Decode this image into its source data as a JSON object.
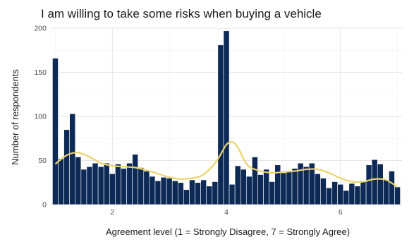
{
  "chart_data": {
    "type": "bar",
    "title": "I am willing to take some risks when buying a vehicle",
    "xlabel": "Agreement level (1 = Strongly Disagree, 7 = Strongly Agree)",
    "ylabel": "Number of respondents",
    "xlim": [
      0.92,
      7.08
    ],
    "ylim": [
      0,
      200
    ],
    "xticks": [
      2,
      4,
      6
    ],
    "yticks": [
      0,
      50,
      100,
      150,
      200
    ],
    "bin_width": 0.1,
    "grid": true,
    "x": [
      1.0,
      1.1,
      1.2,
      1.3,
      1.4,
      1.5,
      1.6,
      1.7,
      1.8,
      1.9,
      2.0,
      2.1,
      2.2,
      2.3,
      2.4,
      2.5,
      2.6,
      2.7,
      2.8,
      2.9,
      3.0,
      3.1,
      3.2,
      3.3,
      3.4,
      3.5,
      3.6,
      3.7,
      3.8,
      3.9,
      4.0,
      4.1,
      4.2,
      4.3,
      4.4,
      4.5,
      4.6,
      4.7,
      4.8,
      4.9,
      5.0,
      5.1,
      5.2,
      5.3,
      5.4,
      5.5,
      5.6,
      5.7,
      5.8,
      5.9,
      6.0,
      6.1,
      6.2,
      6.3,
      6.4,
      6.5,
      6.6,
      6.7,
      6.8,
      6.9,
      7.0
    ],
    "values": [
      166,
      52,
      85,
      103,
      54,
      40,
      43,
      47,
      43,
      47,
      35,
      46,
      41,
      47,
      57,
      42,
      38,
      32,
      27,
      31,
      30,
      27,
      25,
      17,
      28,
      25,
      28,
      21,
      26,
      181,
      197,
      23,
      44,
      40,
      32,
      54,
      34,
      40,
      26,
      45,
      36,
      37,
      41,
      47,
      43,
      47,
      35,
      30,
      19,
      26,
      23,
      16,
      24,
      21,
      27,
      45,
      51,
      46,
      28,
      38,
      20
    ],
    "smooth": {
      "x": [
        1.0,
        1.2,
        1.4,
        1.6,
        1.8,
        2.0,
        2.2,
        2.4,
        2.6,
        2.8,
        3.0,
        3.2,
        3.4,
        3.6,
        3.8,
        3.9,
        4.0,
        4.1,
        4.2,
        4.3,
        4.4,
        4.6,
        4.8,
        5.0,
        5.2,
        5.4,
        5.6,
        5.8,
        6.0,
        6.2,
        6.4,
        6.6,
        6.8,
        7.0
      ],
      "y": [
        46,
        56,
        59,
        54,
        47,
        44,
        43,
        42,
        39,
        35,
        31,
        29,
        30,
        34,
        47,
        57,
        68,
        71,
        65,
        52,
        43,
        38,
        36,
        37,
        38,
        40,
        40,
        36,
        30,
        26,
        26,
        29,
        28,
        20
      ]
    },
    "colors": {
      "bars": "#0d2a57",
      "smooth": "#ecd36a",
      "grid": "#e6e6e6"
    }
  }
}
